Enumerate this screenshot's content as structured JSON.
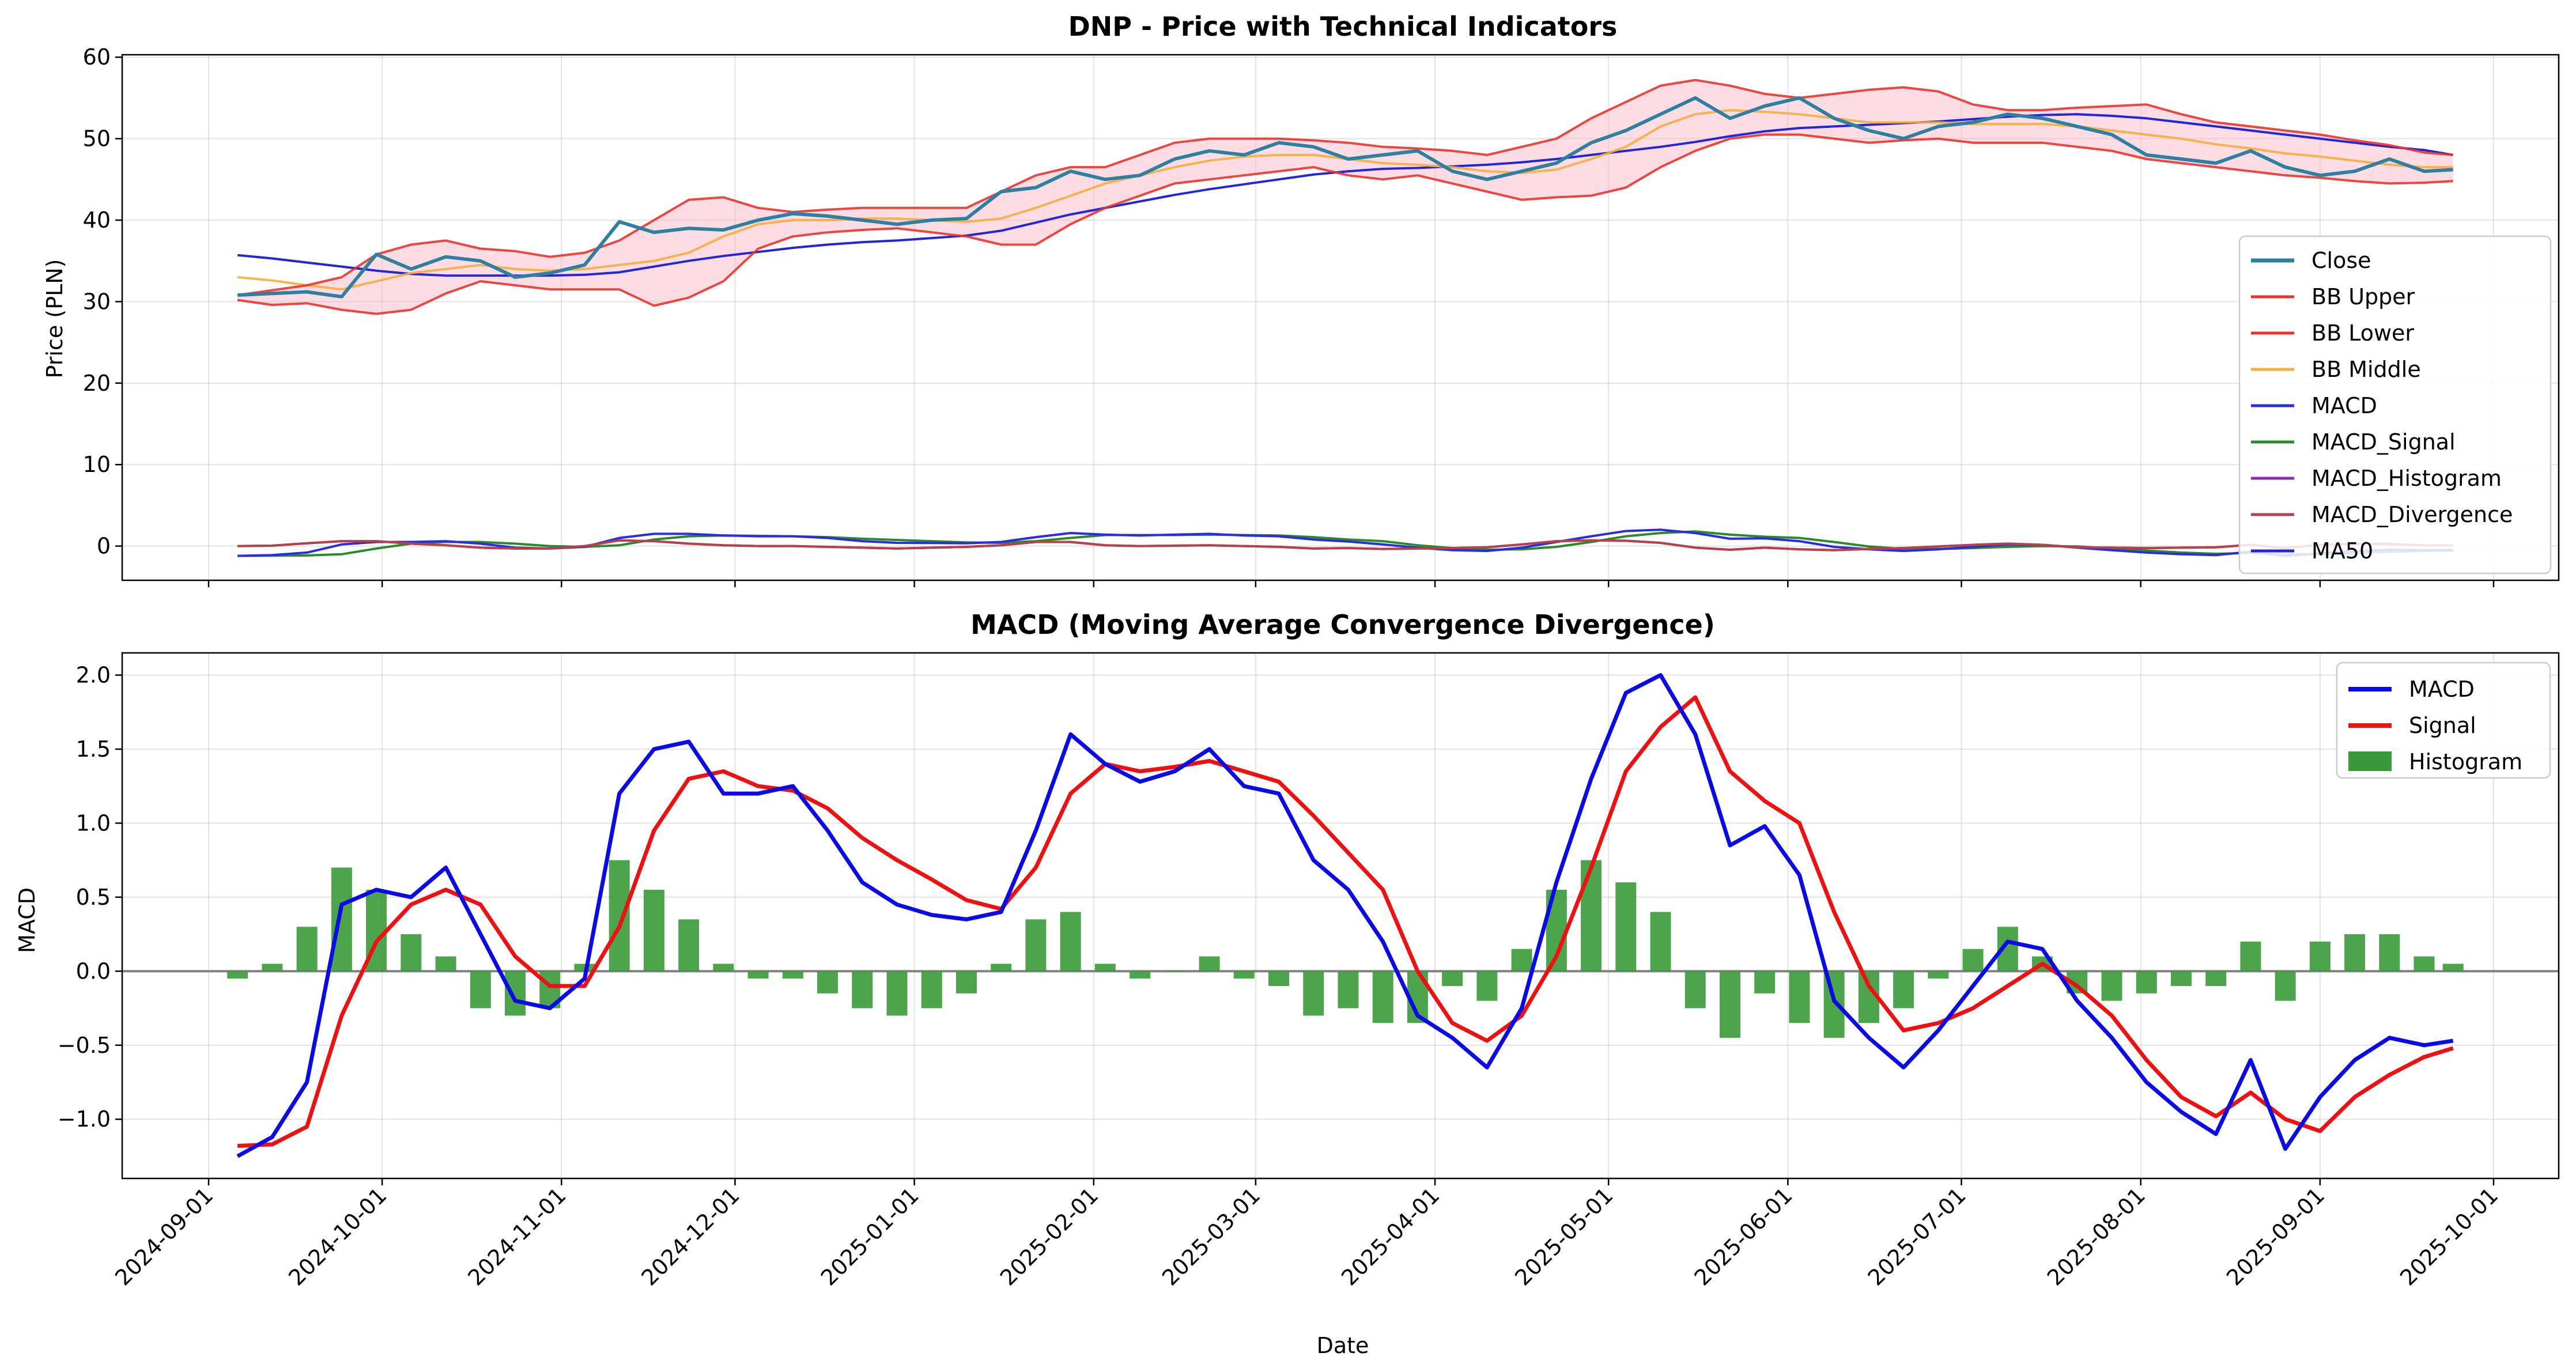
{
  "figure": {
    "top_title": "DNP - Price with Technical Indicators",
    "top_ylabel": "Price (PLN)",
    "bottom_title": "MACD (Moving Average Convergence Divergence)",
    "bottom_ylabel": "MACD",
    "xlabel": "Date"
  },
  "chart_data": [
    {
      "type": "line",
      "title": "DNP - Price with Technical Indicators",
      "xlabel": "",
      "ylabel": "Price (PLN)",
      "ylim": [
        -4.2,
        60.3
      ],
      "yticks": [
        0,
        10,
        20,
        30,
        40,
        50,
        60
      ],
      "grid": true,
      "legend_position": "right",
      "x_dates": [
        "2024-09-06",
        "2024-09-12",
        "2024-09-18",
        "2024-09-24",
        "2024-09-30",
        "2024-10-06",
        "2024-10-12",
        "2024-10-18",
        "2024-10-24",
        "2024-10-30",
        "2024-11-05",
        "2024-11-11",
        "2024-11-17",
        "2024-11-23",
        "2024-11-29",
        "2024-12-05",
        "2024-12-11",
        "2024-12-17",
        "2024-12-23",
        "2024-12-29",
        "2025-01-04",
        "2025-01-10",
        "2025-01-16",
        "2025-01-22",
        "2025-01-28",
        "2025-02-03",
        "2025-02-09",
        "2025-02-15",
        "2025-02-21",
        "2025-02-27",
        "2025-03-05",
        "2025-03-11",
        "2025-03-17",
        "2025-03-23",
        "2025-03-29",
        "2025-04-04",
        "2025-04-10",
        "2025-04-16",
        "2025-04-22",
        "2025-04-28",
        "2025-05-04",
        "2025-05-10",
        "2025-05-16",
        "2025-05-22",
        "2025-05-28",
        "2025-06-03",
        "2025-06-09",
        "2025-06-15",
        "2025-06-21",
        "2025-06-27",
        "2025-07-03",
        "2025-07-09",
        "2025-07-15",
        "2025-07-21",
        "2025-07-27",
        "2025-08-02",
        "2025-08-08",
        "2025-08-14",
        "2025-08-20",
        "2025-08-26",
        "2025-09-01",
        "2025-09-07",
        "2025-09-13",
        "2025-09-19",
        "2025-09-24"
      ],
      "series": [
        {
          "name": "Close",
          "color": "#2e7fa0",
          "values": [
            30.8,
            31.0,
            31.2,
            30.6,
            35.8,
            34.0,
            35.5,
            35.0,
            33.0,
            33.5,
            34.5,
            39.8,
            38.5,
            39.0,
            38.8,
            40.0,
            40.8,
            40.5,
            40.0,
            39.5,
            40.0,
            40.2,
            43.5,
            44.0,
            46.0,
            45.0,
            45.5,
            47.5,
            48.5,
            48.0,
            49.5,
            49.0,
            47.5,
            48.0,
            48.5,
            46.0,
            45.0,
            46.0,
            47.0,
            49.5,
            51.0,
            53.0,
            55.0,
            52.5,
            54.0,
            55.0,
            52.5,
            51.0,
            50.0,
            51.5,
            52.0,
            53.0,
            52.5,
            51.5,
            50.5,
            48.0,
            47.5,
            47.0,
            48.5,
            46.5,
            45.5,
            46.0,
            47.5,
            46.0,
            46.2
          ]
        },
        {
          "name": "BB Upper",
          "color": "#e8342f",
          "values": [
            30.8,
            31.4,
            32.0,
            33.0,
            35.8,
            37.0,
            37.5,
            36.5,
            36.2,
            35.5,
            36.0,
            37.5,
            40.0,
            42.5,
            42.8,
            41.5,
            41.0,
            41.3,
            41.5,
            41.5,
            41.5,
            41.5,
            43.5,
            45.5,
            46.5,
            46.5,
            48.0,
            49.5,
            50.0,
            50.0,
            50.0,
            49.8,
            49.5,
            49.0,
            48.8,
            48.5,
            48.0,
            49.0,
            50.0,
            52.5,
            54.5,
            56.5,
            57.2,
            56.5,
            55.5,
            55.0,
            55.5,
            56.0,
            56.3,
            55.8,
            54.2,
            53.5,
            53.5,
            53.8,
            54.0,
            54.2,
            53.0,
            52.0,
            51.5,
            51.0,
            50.5,
            49.8,
            49.2,
            48.3,
            48.0
          ]
        },
        {
          "name": "BB Lower",
          "color": "#e8342f",
          "values": [
            30.2,
            29.6,
            29.8,
            29.0,
            28.5,
            29.0,
            31.0,
            32.5,
            32.0,
            31.5,
            31.5,
            31.5,
            29.5,
            30.5,
            32.5,
            36.5,
            38.0,
            38.5,
            38.8,
            39.0,
            38.5,
            38.0,
            37.0,
            37.0,
            39.5,
            41.5,
            43.0,
            44.5,
            45.0,
            45.5,
            46.0,
            46.5,
            45.5,
            45.0,
            45.5,
            44.5,
            43.5,
            42.5,
            42.8,
            43.0,
            44.0,
            46.5,
            48.5,
            50.0,
            50.5,
            50.5,
            50.0,
            49.5,
            49.8,
            50.0,
            49.5,
            49.5,
            49.5,
            49.0,
            48.5,
            47.5,
            47.0,
            46.5,
            46.0,
            45.5,
            45.2,
            44.8,
            44.5,
            44.6,
            44.8
          ]
        },
        {
          "name": "BB Middle",
          "color": "#f5ad3c",
          "values": [
            33.0,
            32.6,
            32.0,
            31.5,
            32.5,
            33.5,
            34.0,
            34.5,
            34.0,
            33.8,
            34.0,
            34.5,
            35.0,
            36.0,
            38.0,
            39.5,
            40.0,
            40.0,
            40.2,
            40.2,
            40.0,
            39.8,
            40.2,
            41.5,
            43.0,
            44.5,
            45.5,
            46.5,
            47.3,
            47.8,
            48.0,
            48.0,
            47.5,
            47.0,
            46.8,
            46.5,
            46.0,
            45.8,
            46.2,
            47.5,
            49.0,
            51.5,
            53.0,
            53.5,
            53.3,
            53.0,
            52.5,
            52.0,
            52.0,
            52.0,
            51.8,
            51.8,
            51.8,
            51.5,
            51.0,
            50.5,
            50.0,
            49.3,
            48.8,
            48.2,
            47.8,
            47.3,
            46.8,
            46.5,
            46.5
          ]
        },
        {
          "name": "MACD",
          "color": "#2b2be0",
          "values": [
            -1.2,
            -1.1,
            -0.8,
            0.2,
            0.5,
            0.5,
            0.6,
            0.3,
            -0.2,
            -0.3,
            -0.1,
            1.0,
            1.5,
            1.5,
            1.3,
            1.2,
            1.2,
            1.0,
            0.6,
            0.4,
            0.38,
            0.35,
            0.5,
            1.1,
            1.6,
            1.4,
            1.3,
            1.4,
            1.5,
            1.3,
            1.2,
            0.8,
            0.55,
            0.2,
            -0.2,
            -0.5,
            -0.6,
            -0.2,
            0.5,
            1.2,
            1.85,
            2.0,
            1.6,
            0.9,
            0.95,
            0.6,
            -0.1,
            -0.4,
            -0.6,
            -0.4,
            -0.1,
            0.2,
            0.15,
            -0.2,
            -0.5,
            -0.8,
            -1.0,
            -1.1,
            -0.7,
            -1.2,
            -0.9,
            -0.6,
            -0.45,
            -0.5,
            -0.48
          ]
        },
        {
          "name": "MACD_Signal",
          "color": "#2a8a2a",
          "values": [
            -1.2,
            -1.18,
            -1.15,
            -1.0,
            -0.3,
            0.3,
            0.5,
            0.5,
            0.3,
            0.0,
            -0.1,
            0.1,
            0.8,
            1.2,
            1.3,
            1.25,
            1.2,
            1.1,
            0.9,
            0.75,
            0.6,
            0.45,
            0.4,
            0.6,
            1.0,
            1.35,
            1.35,
            1.35,
            1.4,
            1.35,
            1.3,
            1.1,
            0.8,
            0.6,
            0.1,
            -0.25,
            -0.45,
            -0.4,
            -0.1,
            0.5,
            1.2,
            1.6,
            1.8,
            1.4,
            1.15,
            1.0,
            0.5,
            -0.05,
            -0.35,
            -0.35,
            -0.25,
            -0.1,
            0.0,
            -0.05,
            -0.3,
            -0.55,
            -0.8,
            -0.95,
            -0.85,
            -0.95,
            -1.05,
            -0.85,
            -0.7,
            -0.6,
            -0.55
          ]
        },
        {
          "name": "MACD_Histogram",
          "color": "#8a2bb0",
          "values": [
            0.0,
            0.05,
            0.35,
            0.6,
            0.6,
            0.3,
            0.1,
            -0.2,
            -0.3,
            -0.3,
            0.0,
            0.7,
            0.6,
            0.3,
            0.1,
            0.0,
            0.0,
            -0.1,
            -0.2,
            -0.3,
            -0.2,
            -0.1,
            0.1,
            0.5,
            0.5,
            0.1,
            0.0,
            0.05,
            0.1,
            0.0,
            -0.1,
            -0.3,
            -0.25,
            -0.35,
            -0.3,
            -0.25,
            -0.15,
            0.2,
            0.6,
            0.7,
            0.65,
            0.4,
            -0.2,
            -0.45,
            -0.2,
            -0.4,
            -0.5,
            -0.35,
            -0.25,
            -0.05,
            0.15,
            0.3,
            0.15,
            -0.15,
            -0.2,
            -0.25,
            -0.2,
            -0.15,
            0.15,
            -0.25,
            0.15,
            0.25,
            0.25,
            0.1,
            0.07
          ]
        },
        {
          "name": "MACD_Divergence",
          "color": "#b5424a",
          "values": [
            0.0,
            0.05,
            0.35,
            0.6,
            0.6,
            0.3,
            0.1,
            -0.2,
            -0.3,
            -0.3,
            0.0,
            0.7,
            0.6,
            0.3,
            0.1,
            0.0,
            0.0,
            -0.1,
            -0.2,
            -0.3,
            -0.2,
            -0.1,
            0.1,
            0.5,
            0.5,
            0.1,
            0.0,
            0.05,
            0.1,
            0.0,
            -0.1,
            -0.3,
            -0.25,
            -0.35,
            -0.3,
            -0.25,
            -0.15,
            0.2,
            0.6,
            0.7,
            0.65,
            0.4,
            -0.2,
            -0.45,
            -0.2,
            -0.4,
            -0.5,
            -0.35,
            -0.25,
            -0.05,
            0.15,
            0.3,
            0.15,
            -0.15,
            -0.2,
            -0.25,
            -0.2,
            -0.15,
            0.15,
            -0.25,
            0.15,
            0.25,
            0.25,
            0.1,
            0.07
          ]
        },
        {
          "name": "MA50",
          "color": "#2525d8",
          "values": [
            35.7,
            35.3,
            34.8,
            34.3,
            33.8,
            33.4,
            33.2,
            33.2,
            33.2,
            33.2,
            33.3,
            33.6,
            34.3,
            35.0,
            35.6,
            36.1,
            36.6,
            37.0,
            37.3,
            37.5,
            37.8,
            38.1,
            38.7,
            39.7,
            40.7,
            41.5,
            42.3,
            43.1,
            43.8,
            44.4,
            45.0,
            45.6,
            46.0,
            46.3,
            46.4,
            46.6,
            46.8,
            47.1,
            47.5,
            48.0,
            48.5,
            49.0,
            49.6,
            50.3,
            50.9,
            51.3,
            51.5,
            51.7,
            51.9,
            52.1,
            52.4,
            52.7,
            52.9,
            53.0,
            52.8,
            52.5,
            52.0,
            51.5,
            51.0,
            50.5,
            50.0,
            49.5,
            49.0,
            48.6,
            48.0
          ]
        }
      ],
      "legend": [
        "Close",
        "BB Upper",
        "BB Lower",
        "BB Middle",
        "MACD",
        "MACD_Signal",
        "MACD_Histogram",
        "MACD_Divergence",
        "MA50"
      ]
    },
    {
      "type": "line",
      "title": "MACD (Moving Average Convergence Divergence)",
      "xlabel": "Date",
      "ylabel": "MACD",
      "ylim": [
        -1.4,
        2.15
      ],
      "yticks": [
        -1.0,
        -0.5,
        0.0,
        0.5,
        1.0,
        1.5,
        2.0
      ],
      "grid": true,
      "legend_position": "top-right",
      "x_dates": [
        "2024-09-06",
        "2024-09-12",
        "2024-09-18",
        "2024-09-24",
        "2024-09-30",
        "2024-10-06",
        "2024-10-12",
        "2024-10-18",
        "2024-10-24",
        "2024-10-30",
        "2024-11-05",
        "2024-11-11",
        "2024-11-17",
        "2024-11-23",
        "2024-11-29",
        "2024-12-05",
        "2024-12-11",
        "2024-12-17",
        "2024-12-23",
        "2024-12-29",
        "2025-01-04",
        "2025-01-10",
        "2025-01-16",
        "2025-01-22",
        "2025-01-28",
        "2025-02-03",
        "2025-02-09",
        "2025-02-15",
        "2025-02-21",
        "2025-02-27",
        "2025-03-05",
        "2025-03-11",
        "2025-03-17",
        "2025-03-23",
        "2025-03-29",
        "2025-04-04",
        "2025-04-10",
        "2025-04-16",
        "2025-04-22",
        "2025-04-28",
        "2025-05-04",
        "2025-05-10",
        "2025-05-16",
        "2025-05-22",
        "2025-05-28",
        "2025-06-03",
        "2025-06-09",
        "2025-06-15",
        "2025-06-21",
        "2025-06-27",
        "2025-07-03",
        "2025-07-09",
        "2025-07-15",
        "2025-07-21",
        "2025-07-27",
        "2025-08-02",
        "2025-08-08",
        "2025-08-14",
        "2025-08-20",
        "2025-08-26",
        "2025-09-01",
        "2025-09-07",
        "2025-09-13",
        "2025-09-19",
        "2025-09-24"
      ],
      "series": [
        {
          "name": "MACD",
          "color": "#0a0ae6",
          "kind": "line",
          "values": [
            -1.25,
            -1.12,
            -0.75,
            0.45,
            0.55,
            0.5,
            0.7,
            0.25,
            -0.2,
            -0.25,
            -0.05,
            1.2,
            1.5,
            1.55,
            1.2,
            1.2,
            1.25,
            0.95,
            0.6,
            0.45,
            0.38,
            0.35,
            0.4,
            0.95,
            1.6,
            1.4,
            1.28,
            1.35,
            1.5,
            1.25,
            1.2,
            0.75,
            0.55,
            0.2,
            -0.3,
            -0.45,
            -0.65,
            -0.25,
            0.6,
            1.3,
            1.88,
            2.0,
            1.6,
            0.85,
            0.98,
            0.65,
            -0.2,
            -0.45,
            -0.65,
            -0.4,
            -0.1,
            0.2,
            0.15,
            -0.2,
            -0.45,
            -0.75,
            -0.95,
            -1.1,
            -0.6,
            -1.2,
            -0.85,
            -0.6,
            -0.45,
            -0.5,
            -0.47
          ]
        },
        {
          "name": "Signal",
          "color": "#ee1111",
          "kind": "line",
          "values": [
            -1.18,
            -1.17,
            -1.05,
            -0.3,
            0.2,
            0.45,
            0.55,
            0.45,
            0.1,
            -0.1,
            -0.1,
            0.3,
            0.95,
            1.3,
            1.35,
            1.25,
            1.22,
            1.1,
            0.9,
            0.75,
            0.62,
            0.48,
            0.42,
            0.7,
            1.2,
            1.4,
            1.35,
            1.38,
            1.42,
            1.35,
            1.28,
            1.05,
            0.8,
            0.55,
            0.0,
            -0.35,
            -0.47,
            -0.3,
            0.1,
            0.7,
            1.35,
            1.65,
            1.85,
            1.35,
            1.15,
            1.0,
            0.4,
            -0.1,
            -0.4,
            -0.35,
            -0.25,
            -0.1,
            0.05,
            -0.1,
            -0.3,
            -0.6,
            -0.85,
            -0.98,
            -0.82,
            -1.0,
            -1.08,
            -0.85,
            -0.7,
            -0.58,
            -0.52
          ]
        },
        {
          "name": "Histogram",
          "color": "#3a9a3a",
          "kind": "bar",
          "values": [
            -0.05,
            0.05,
            0.3,
            0.7,
            0.55,
            0.25,
            0.1,
            -0.25,
            -0.3,
            -0.25,
            0.05,
            0.75,
            0.55,
            0.35,
            0.05,
            -0.05,
            -0.05,
            -0.15,
            -0.25,
            -0.3,
            -0.25,
            -0.15,
            0.05,
            0.35,
            0.4,
            0.05,
            -0.05,
            0.0,
            0.1,
            -0.05,
            -0.1,
            -0.3,
            -0.25,
            -0.35,
            -0.35,
            -0.1,
            -0.2,
            0.15,
            0.55,
            0.75,
            0.6,
            0.4,
            -0.25,
            -0.45,
            -0.15,
            -0.35,
            -0.45,
            -0.35,
            -0.25,
            -0.05,
            0.15,
            0.3,
            0.1,
            -0.15,
            -0.2,
            -0.15,
            -0.1,
            -0.1,
            0.2,
            -0.2,
            0.2,
            0.25,
            0.25,
            0.1,
            0.05
          ]
        }
      ],
      "legend": [
        "MACD",
        "Signal",
        "Histogram"
      ]
    }
  ],
  "x_ticks": [
    "2024-09-01",
    "2024-10-01",
    "2024-11-01",
    "2024-12-01",
    "2025-01-01",
    "2025-02-01",
    "2025-03-01",
    "2025-04-01",
    "2025-05-01",
    "2025-06-01",
    "2025-07-01",
    "2025-08-01",
    "2025-09-01",
    "2025-10-01"
  ]
}
